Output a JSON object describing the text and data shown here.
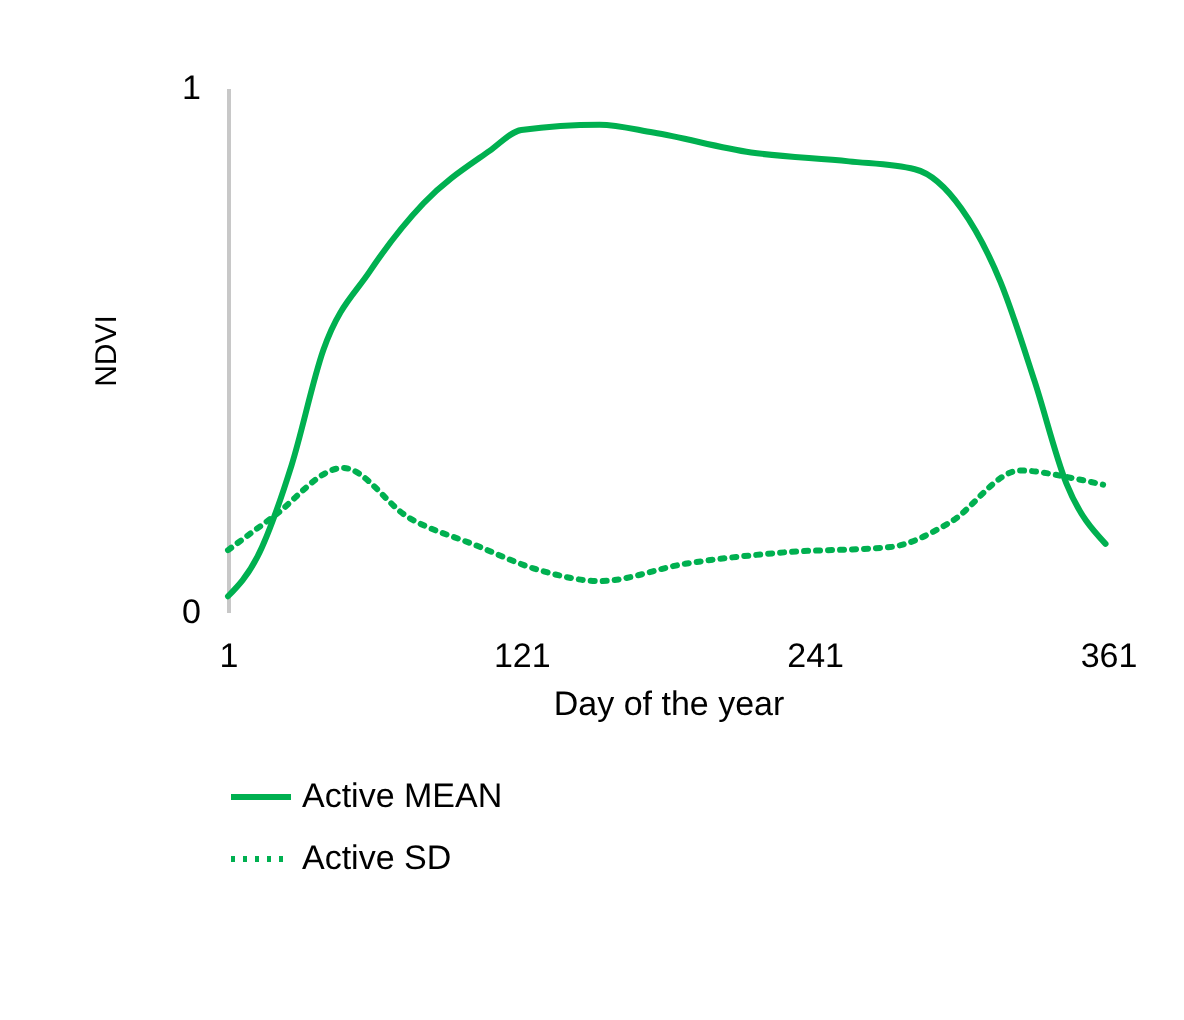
{
  "chart_data": {
    "type": "line",
    "xlabel": "Day of the year",
    "ylabel": "NDVI",
    "xlim": [
      1,
      361
    ],
    "xticks": [
      1,
      121,
      241,
      361
    ],
    "ylim": [
      0,
      1
    ],
    "yticks": [
      0,
      1
    ],
    "grid": false,
    "legend": "bottom",
    "marker": "none",
    "series": [
      {
        "name": "Active MEAN",
        "color": "#00b050",
        "line_style": "solid",
        "x": [
          1,
          13,
          27,
          40,
          59,
          81,
          108,
          121,
          153,
          175,
          215,
          255,
          282,
          301,
          317,
          331,
          344,
          360
        ],
        "values": [
          0.03,
          0.105,
          0.28,
          0.5,
          0.65,
          0.78,
          0.88,
          0.92,
          0.93,
          0.915,
          0.877,
          0.86,
          0.845,
          0.77,
          0.63,
          0.44,
          0.245,
          0.13
        ]
      },
      {
        "name": "Active SD",
        "color": "#00b050",
        "line_style": "dotted",
        "x": [
          1,
          19,
          48,
          75,
          102,
          129,
          153,
          188,
          229,
          272,
          296,
          325,
          347,
          359
        ],
        "values": [
          0.118,
          0.18,
          0.275,
          0.18,
          0.128,
          0.079,
          0.059,
          0.092,
          0.114,
          0.124,
          0.17,
          0.27,
          0.255,
          0.243
        ]
      }
    ]
  }
}
